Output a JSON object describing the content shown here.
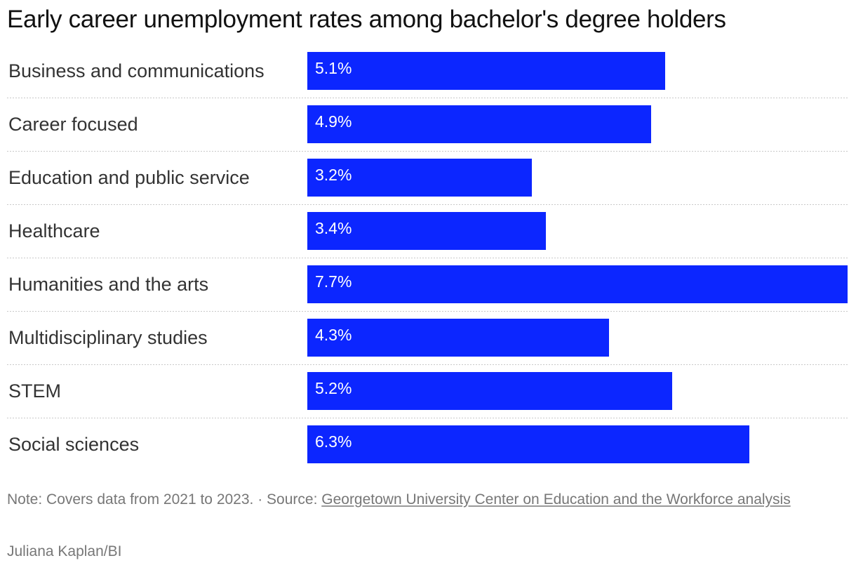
{
  "title": "Early career unemployment rates among bachelor's degree holders",
  "chart_data": {
    "type": "bar",
    "orientation": "horizontal",
    "title": "Early career unemployment rates among bachelor's degree holders",
    "categories": [
      "Business and communications",
      "Career focused",
      "Education and public service",
      "Healthcare",
      "Humanities and the arts",
      "Multidisciplinary studies",
      "STEM",
      "Social sciences"
    ],
    "values": [
      5.1,
      4.9,
      3.2,
      3.4,
      7.7,
      4.3,
      5.2,
      6.3
    ],
    "labels": [
      "5.1%",
      "4.9%",
      "3.2%",
      "3.4%",
      "7.7%",
      "4.3%",
      "5.2%",
      "6.3%"
    ],
    "unit": "%",
    "xlim": [
      0,
      7.7
    ],
    "grid": false,
    "bar_color": "#0c26ff"
  },
  "note": {
    "prefix": "Note: Covers data from 2021 to 2023. · Source: ",
    "source_link": "Georgetown University Center on Education and the Workforce analysis"
  },
  "credit": "Juliana Kaplan/BI"
}
